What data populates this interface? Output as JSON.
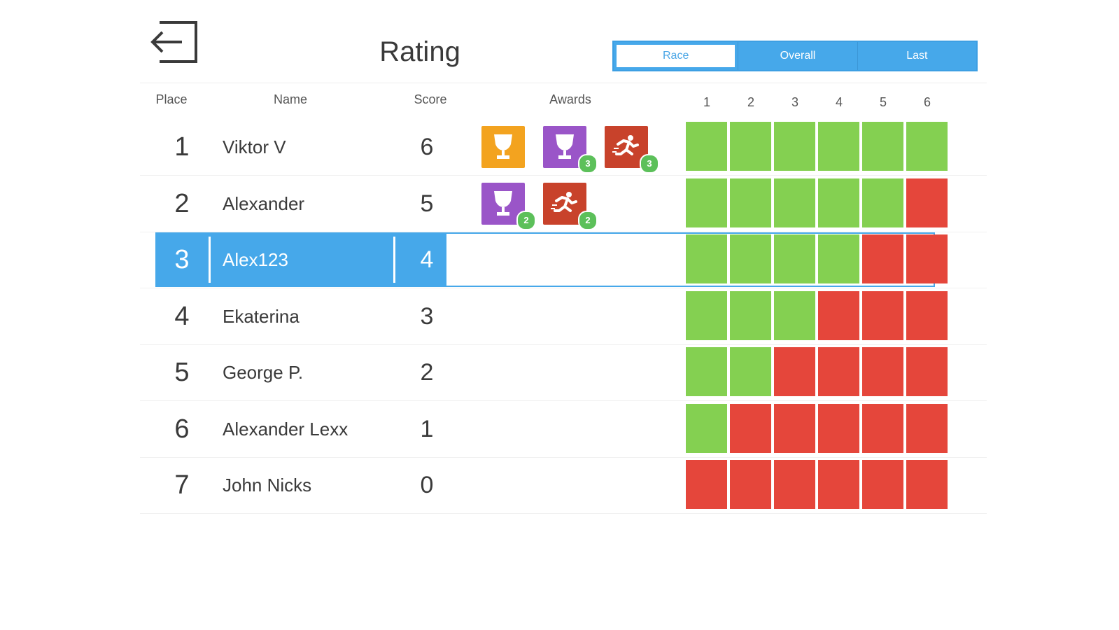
{
  "header": {
    "title": "Rating",
    "tabs": [
      {
        "label": "Race",
        "active": true
      },
      {
        "label": "Overall",
        "active": false
      },
      {
        "label": "Last",
        "active": false
      }
    ]
  },
  "columns": {
    "place": "Place",
    "name": "Name",
    "score": "Score",
    "awards": "Awards",
    "rounds": [
      "1",
      "2",
      "3",
      "4",
      "5",
      "6"
    ]
  },
  "colors": {
    "accent": "#46a8ea",
    "win": "#84d051",
    "loss": "#e5463b",
    "award_gold": "#f3a31f",
    "award_purple": "#9a55c8",
    "award_runner": "#c8422b",
    "badge": "#5cc05a"
  },
  "rows": [
    {
      "place": "1",
      "name": "Viktor V",
      "score": "6",
      "current": false,
      "awards": [
        {
          "icon": "gold-trophy-icon",
          "color": "#f3a31f",
          "badge": ""
        },
        {
          "icon": "purple-trophy-icon",
          "color": "#9a55c8",
          "badge": "3"
        },
        {
          "icon": "runner-icon",
          "color": "#c8422b",
          "badge": "3"
        }
      ],
      "results": [
        "win",
        "win",
        "win",
        "win",
        "win",
        "win"
      ]
    },
    {
      "place": "2",
      "name": "Alexander",
      "score": "5",
      "current": false,
      "awards": [
        {
          "icon": "purple-trophy-icon",
          "color": "#9a55c8",
          "badge": "2"
        },
        {
          "icon": "runner-icon",
          "color": "#c8422b",
          "badge": "2"
        }
      ],
      "results": [
        "win",
        "win",
        "win",
        "win",
        "win",
        "loss"
      ]
    },
    {
      "place": "3",
      "name": "Alex123",
      "score": "4",
      "current": true,
      "awards": [],
      "results": [
        "win",
        "win",
        "win",
        "win",
        "loss",
        "loss"
      ]
    },
    {
      "place": "4",
      "name": "Ekaterina",
      "score": "3",
      "current": false,
      "awards": [],
      "results": [
        "win",
        "win",
        "win",
        "loss",
        "loss",
        "loss"
      ]
    },
    {
      "place": "5",
      "name": "George P.",
      "score": "2",
      "current": false,
      "awards": [],
      "results": [
        "win",
        "win",
        "loss",
        "loss",
        "loss",
        "loss"
      ]
    },
    {
      "place": "6",
      "name": "Alexander Lexx",
      "score": "1",
      "current": false,
      "awards": [],
      "results": [
        "win",
        "loss",
        "loss",
        "loss",
        "loss",
        "loss"
      ]
    },
    {
      "place": "7",
      "name": "John Nicks",
      "score": "0",
      "current": false,
      "awards": [],
      "results": [
        "loss",
        "loss",
        "loss",
        "loss",
        "loss",
        "loss"
      ]
    }
  ]
}
